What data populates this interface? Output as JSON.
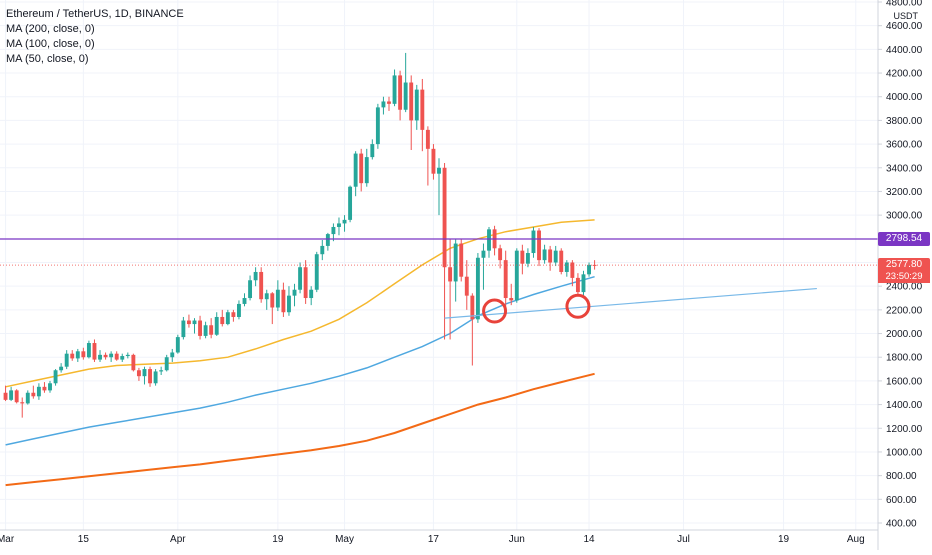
{
  "legend": {
    "symbol": "Ethereum / TetherUS, 1D, BINANCE",
    "ma200": "MA (200, close, 0)",
    "ma100": "MA (100, close, 0)",
    "ma50": "MA (50, close, 0)"
  },
  "currency": "USDT",
  "colors": {
    "up": "#26a69a",
    "down": "#ef5350",
    "ma50": "#f5b82e",
    "ma100": "#4fa8e0",
    "ma200": "#f36a16",
    "hline": "#7b36c4",
    "circles": "#e8423a",
    "trend": "#79b9e8"
  },
  "price_tags": {
    "level": "2798.54",
    "last": "2577.80",
    "countdown": "23:50:29"
  },
  "chart_data": {
    "type": "candlestick",
    "title": "Ethereum / TetherUS, 1D, BINANCE",
    "ylim": [
      400,
      4800
    ],
    "y_ticks": [
      400,
      600,
      800,
      1000,
      1200,
      1400,
      1600,
      1800,
      2000,
      2200,
      2400,
      2600,
      2800,
      3000,
      3200,
      3400,
      3600,
      3800,
      4000,
      4200,
      4400,
      4600,
      4800
    ],
    "x_tick_labels": [
      {
        "day": 0,
        "label": "Mar"
      },
      {
        "day": 14,
        "label": "15"
      },
      {
        "day": 31,
        "label": "Apr"
      },
      {
        "day": 49,
        "label": "19"
      },
      {
        "day": 61,
        "label": "May"
      },
      {
        "day": 77,
        "label": "17"
      },
      {
        "day": 92,
        "label": "Jun"
      },
      {
        "day": 105,
        "label": "14"
      },
      {
        "day": 122,
        "label": "Jul"
      },
      {
        "day": 140,
        "label": "19"
      },
      {
        "day": 153,
        "label": "Aug"
      }
    ],
    "candles": [
      {
        "d": 0,
        "o": 1500,
        "h": 1560,
        "l": 1430,
        "c": 1440
      },
      {
        "d": 1,
        "o": 1440,
        "h": 1550,
        "l": 1430,
        "c": 1520
      },
      {
        "d": 2,
        "o": 1520,
        "h": 1530,
        "l": 1410,
        "c": 1420
      },
      {
        "d": 3,
        "o": 1420,
        "h": 1460,
        "l": 1290,
        "c": 1410
      },
      {
        "d": 4,
        "o": 1410,
        "h": 1520,
        "l": 1400,
        "c": 1500
      },
      {
        "d": 5,
        "o": 1500,
        "h": 1560,
        "l": 1450,
        "c": 1470
      },
      {
        "d": 6,
        "o": 1470,
        "h": 1580,
        "l": 1440,
        "c": 1550
      },
      {
        "d": 7,
        "o": 1550,
        "h": 1590,
        "l": 1500,
        "c": 1520
      },
      {
        "d": 8,
        "o": 1520,
        "h": 1600,
        "l": 1500,
        "c": 1580
      },
      {
        "d": 9,
        "o": 1580,
        "h": 1700,
        "l": 1560,
        "c": 1690
      },
      {
        "d": 10,
        "o": 1690,
        "h": 1750,
        "l": 1670,
        "c": 1720
      },
      {
        "d": 11,
        "o": 1720,
        "h": 1860,
        "l": 1700,
        "c": 1830
      },
      {
        "d": 12,
        "o": 1830,
        "h": 1860,
        "l": 1770,
        "c": 1790
      },
      {
        "d": 13,
        "o": 1790,
        "h": 1870,
        "l": 1760,
        "c": 1850
      },
      {
        "d": 14,
        "o": 1850,
        "h": 1880,
        "l": 1780,
        "c": 1800
      },
      {
        "d": 15,
        "o": 1800,
        "h": 1940,
        "l": 1790,
        "c": 1920
      },
      {
        "d": 16,
        "o": 1920,
        "h": 1950,
        "l": 1760,
        "c": 1780
      },
      {
        "d": 17,
        "o": 1780,
        "h": 1860,
        "l": 1760,
        "c": 1820
      },
      {
        "d": 18,
        "o": 1820,
        "h": 1840,
        "l": 1780,
        "c": 1800
      },
      {
        "d": 19,
        "o": 1800,
        "h": 1850,
        "l": 1760,
        "c": 1830
      },
      {
        "d": 20,
        "o": 1830,
        "h": 1850,
        "l": 1770,
        "c": 1780
      },
      {
        "d": 21,
        "o": 1780,
        "h": 1830,
        "l": 1760,
        "c": 1810
      },
      {
        "d": 22,
        "o": 1810,
        "h": 1840,
        "l": 1790,
        "c": 1820
      },
      {
        "d": 23,
        "o": 1820,
        "h": 1830,
        "l": 1680,
        "c": 1690
      },
      {
        "d": 24,
        "o": 1690,
        "h": 1710,
        "l": 1600,
        "c": 1640
      },
      {
        "d": 25,
        "o": 1640,
        "h": 1720,
        "l": 1570,
        "c": 1700
      },
      {
        "d": 26,
        "o": 1700,
        "h": 1720,
        "l": 1550,
        "c": 1580
      },
      {
        "d": 27,
        "o": 1580,
        "h": 1700,
        "l": 1560,
        "c": 1680
      },
      {
        "d": 28,
        "o": 1680,
        "h": 1720,
        "l": 1650,
        "c": 1690
      },
      {
        "d": 29,
        "o": 1690,
        "h": 1820,
        "l": 1680,
        "c": 1800
      },
      {
        "d": 30,
        "o": 1800,
        "h": 1870,
        "l": 1760,
        "c": 1840
      },
      {
        "d": 31,
        "o": 1840,
        "h": 1990,
        "l": 1830,
        "c": 1970
      },
      {
        "d": 32,
        "o": 1970,
        "h": 2140,
        "l": 1950,
        "c": 2110
      },
      {
        "d": 33,
        "o": 2110,
        "h": 2160,
        "l": 2050,
        "c": 2080
      },
      {
        "d": 34,
        "o": 2080,
        "h": 2130,
        "l": 2000,
        "c": 2110
      },
      {
        "d": 35,
        "o": 2110,
        "h": 2150,
        "l": 1950,
        "c": 1980
      },
      {
        "d": 36,
        "o": 1980,
        "h": 2100,
        "l": 1960,
        "c": 2070
      },
      {
        "d": 37,
        "o": 2070,
        "h": 2130,
        "l": 1960,
        "c": 1990
      },
      {
        "d": 38,
        "o": 1990,
        "h": 2180,
        "l": 1980,
        "c": 2140
      },
      {
        "d": 39,
        "o": 2140,
        "h": 2200,
        "l": 2060,
        "c": 2080
      },
      {
        "d": 40,
        "o": 2080,
        "h": 2200,
        "l": 2070,
        "c": 2180
      },
      {
        "d": 41,
        "o": 2180,
        "h": 2200,
        "l": 2100,
        "c": 2140
      },
      {
        "d": 42,
        "o": 2140,
        "h": 2280,
        "l": 2120,
        "c": 2250
      },
      {
        "d": 43,
        "o": 2250,
        "h": 2340,
        "l": 2230,
        "c": 2300
      },
      {
        "d": 44,
        "o": 2300,
        "h": 2490,
        "l": 2280,
        "c": 2450
      },
      {
        "d": 45,
        "o": 2450,
        "h": 2560,
        "l": 2400,
        "c": 2520
      },
      {
        "d": 46,
        "o": 2520,
        "h": 2560,
        "l": 2260,
        "c": 2290
      },
      {
        "d": 47,
        "o": 2290,
        "h": 2370,
        "l": 2200,
        "c": 2340
      },
      {
        "d": 48,
        "o": 2340,
        "h": 2350,
        "l": 2080,
        "c": 2220
      },
      {
        "d": 49,
        "o": 2220,
        "h": 2450,
        "l": 2190,
        "c": 2370
      },
      {
        "d": 50,
        "o": 2370,
        "h": 2430,
        "l": 2140,
        "c": 2180
      },
      {
        "d": 51,
        "o": 2180,
        "h": 2400,
        "l": 2150,
        "c": 2320
      },
      {
        "d": 52,
        "o": 2320,
        "h": 2420,
        "l": 2230,
        "c": 2370
      },
      {
        "d": 53,
        "o": 2370,
        "h": 2600,
        "l": 2340,
        "c": 2560
      },
      {
        "d": 54,
        "o": 2560,
        "h": 2620,
        "l": 2250,
        "c": 2300
      },
      {
        "d": 55,
        "o": 2300,
        "h": 2400,
        "l": 2240,
        "c": 2370
      },
      {
        "d": 56,
        "o": 2370,
        "h": 2690,
        "l": 2350,
        "c": 2670
      },
      {
        "d": 57,
        "o": 2670,
        "h": 2790,
        "l": 2620,
        "c": 2740
      },
      {
        "d": 58,
        "o": 2740,
        "h": 2850,
        "l": 2700,
        "c": 2840
      },
      {
        "d": 59,
        "o": 2840,
        "h": 2930,
        "l": 2780,
        "c": 2900
      },
      {
        "d": 60,
        "o": 2900,
        "h": 2980,
        "l": 2830,
        "c": 2930
      },
      {
        "d": 61,
        "o": 2930,
        "h": 3000,
        "l": 2860,
        "c": 2960
      },
      {
        "d": 62,
        "o": 2960,
        "h": 3250,
        "l": 2940,
        "c": 3240
      },
      {
        "d": 63,
        "o": 3240,
        "h": 3540,
        "l": 3160,
        "c": 3520
      },
      {
        "d": 64,
        "o": 3520,
        "h": 3560,
        "l": 3200,
        "c": 3270
      },
      {
        "d": 65,
        "o": 3270,
        "h": 3560,
        "l": 3240,
        "c": 3490
      },
      {
        "d": 66,
        "o": 3490,
        "h": 3640,
        "l": 3470,
        "c": 3600
      },
      {
        "d": 67,
        "o": 3600,
        "h": 3940,
        "l": 3560,
        "c": 3910
      },
      {
        "d": 68,
        "o": 3910,
        "h": 4000,
        "l": 3850,
        "c": 3960
      },
      {
        "d": 69,
        "o": 3960,
        "h": 4000,
        "l": 3880,
        "c": 3940
      },
      {
        "d": 70,
        "o": 3940,
        "h": 4230,
        "l": 3920,
        "c": 4180
      },
      {
        "d": 71,
        "o": 4180,
        "h": 4220,
        "l": 3800,
        "c": 3890
      },
      {
        "d": 72,
        "o": 3890,
        "h": 4370,
        "l": 3870,
        "c": 4120
      },
      {
        "d": 73,
        "o": 4120,
        "h": 4180,
        "l": 3550,
        "c": 3800
      },
      {
        "d": 74,
        "o": 3800,
        "h": 4100,
        "l": 3720,
        "c": 4060
      },
      {
        "d": 75,
        "o": 4060,
        "h": 4150,
        "l": 3540,
        "c": 3720
      },
      {
        "d": 76,
        "o": 3720,
        "h": 3750,
        "l": 3250,
        "c": 3560
      },
      {
        "d": 77,
        "o": 3560,
        "h": 3600,
        "l": 3300,
        "c": 3350
      },
      {
        "d": 78,
        "o": 3350,
        "h": 3480,
        "l": 3000,
        "c": 3400
      },
      {
        "d": 79,
        "o": 3400,
        "h": 3440,
        "l": 1950,
        "c": 2560
      },
      {
        "d": 80,
        "o": 2560,
        "h": 2800,
        "l": 1950,
        "c": 2440
      },
      {
        "d": 81,
        "o": 2440,
        "h": 2800,
        "l": 2270,
        "c": 2760
      },
      {
        "d": 82,
        "o": 2760,
        "h": 2800,
        "l": 2440,
        "c": 2480
      },
      {
        "d": 83,
        "o": 2480,
        "h": 2620,
        "l": 2200,
        "c": 2320
      },
      {
        "d": 84,
        "o": 2320,
        "h": 2340,
        "l": 1730,
        "c": 2120
      },
      {
        "d": 85,
        "o": 2120,
        "h": 2680,
        "l": 2090,
        "c": 2640
      },
      {
        "d": 86,
        "o": 2640,
        "h": 2760,
        "l": 2370,
        "c": 2700
      },
      {
        "d": 87,
        "o": 2700,
        "h": 2900,
        "l": 2640,
        "c": 2880
      },
      {
        "d": 88,
        "o": 2880,
        "h": 2910,
        "l": 2660,
        "c": 2720
      },
      {
        "d": 89,
        "o": 2720,
        "h": 2750,
        "l": 2550,
        "c": 2620
      },
      {
        "d": 90,
        "o": 2620,
        "h": 2700,
        "l": 2230,
        "c": 2300
      },
      {
        "d": 91,
        "o": 2300,
        "h": 2420,
        "l": 2240,
        "c": 2280
      },
      {
        "d": 92,
        "o": 2280,
        "h": 2720,
        "l": 2260,
        "c": 2700
      },
      {
        "d": 93,
        "o": 2700,
        "h": 2750,
        "l": 2500,
        "c": 2590
      },
      {
        "d": 94,
        "o": 2590,
        "h": 2720,
        "l": 2560,
        "c": 2680
      },
      {
        "d": 95,
        "o": 2680,
        "h": 2900,
        "l": 2640,
        "c": 2870
      },
      {
        "d": 96,
        "o": 2870,
        "h": 2890,
        "l": 2570,
        "c": 2620
      },
      {
        "d": 97,
        "o": 2620,
        "h": 2750,
        "l": 2590,
        "c": 2710
      },
      {
        "d": 98,
        "o": 2710,
        "h": 2740,
        "l": 2530,
        "c": 2600
      },
      {
        "d": 99,
        "o": 2600,
        "h": 2740,
        "l": 2570,
        "c": 2700
      },
      {
        "d": 100,
        "o": 2700,
        "h": 2720,
        "l": 2500,
        "c": 2520
      },
      {
        "d": 101,
        "o": 2520,
        "h": 2620,
        "l": 2480,
        "c": 2600
      },
      {
        "d": 102,
        "o": 2600,
        "h": 2620,
        "l": 2400,
        "c": 2470
      },
      {
        "d": 103,
        "o": 2470,
        "h": 2510,
        "l": 2330,
        "c": 2350
      },
      {
        "d": 104,
        "o": 2350,
        "h": 2530,
        "l": 2320,
        "c": 2500
      },
      {
        "d": 105,
        "o": 2500,
        "h": 2600,
        "l": 2480,
        "c": 2580
      },
      {
        "d": 106,
        "o": 2580,
        "h": 2620,
        "l": 2540,
        "c": 2578
      }
    ],
    "moving_averages": [
      {
        "name": "MA (50, close, 0)",
        "color_key": "ma50",
        "points": [
          [
            0,
            1550
          ],
          [
            5,
            1600
          ],
          [
            10,
            1650
          ],
          [
            15,
            1700
          ],
          [
            20,
            1730
          ],
          [
            25,
            1740
          ],
          [
            30,
            1750
          ],
          [
            35,
            1770
          ],
          [
            40,
            1800
          ],
          [
            45,
            1870
          ],
          [
            50,
            1950
          ],
          [
            55,
            2020
          ],
          [
            60,
            2120
          ],
          [
            65,
            2260
          ],
          [
            70,
            2420
          ],
          [
            75,
            2580
          ],
          [
            80,
            2720
          ],
          [
            85,
            2800
          ],
          [
            90,
            2860
          ],
          [
            95,
            2900
          ],
          [
            100,
            2940
          ],
          [
            106,
            2960
          ]
        ]
      },
      {
        "name": "MA (100, close, 0)",
        "color_key": "ma100",
        "points": [
          [
            0,
            1060
          ],
          [
            5,
            1110
          ],
          [
            10,
            1160
          ],
          [
            15,
            1210
          ],
          [
            20,
            1250
          ],
          [
            25,
            1290
          ],
          [
            30,
            1330
          ],
          [
            35,
            1370
          ],
          [
            40,
            1420
          ],
          [
            45,
            1480
          ],
          [
            50,
            1530
          ],
          [
            55,
            1580
          ],
          [
            60,
            1640
          ],
          [
            65,
            1710
          ],
          [
            70,
            1800
          ],
          [
            75,
            1890
          ],
          [
            80,
            2000
          ],
          [
            85,
            2150
          ],
          [
            90,
            2250
          ],
          [
            95,
            2330
          ],
          [
            100,
            2400
          ],
          [
            106,
            2480
          ]
        ]
      },
      {
        "name": "MA (200, close, 0)",
        "color_key": "ma200",
        "points": [
          [
            0,
            720
          ],
          [
            5,
            745
          ],
          [
            10,
            770
          ],
          [
            15,
            795
          ],
          [
            20,
            820
          ],
          [
            25,
            845
          ],
          [
            30,
            870
          ],
          [
            35,
            895
          ],
          [
            40,
            925
          ],
          [
            45,
            955
          ],
          [
            50,
            985
          ],
          [
            55,
            1015
          ],
          [
            60,
            1050
          ],
          [
            65,
            1095
          ],
          [
            70,
            1160
          ],
          [
            75,
            1240
          ],
          [
            80,
            1320
          ],
          [
            85,
            1400
          ],
          [
            90,
            1460
          ],
          [
            95,
            1530
          ],
          [
            100,
            1590
          ],
          [
            106,
            1660
          ]
        ]
      }
    ],
    "horizontal_line": 2798.54,
    "trend_line": [
      [
        79,
        2130
      ],
      [
        146,
        2380
      ]
    ],
    "circle_markers": [
      [
        88,
        2190
      ],
      [
        103,
        2230
      ]
    ],
    "last_price": 2577.8,
    "x_range": [
      -1,
      157
    ]
  }
}
